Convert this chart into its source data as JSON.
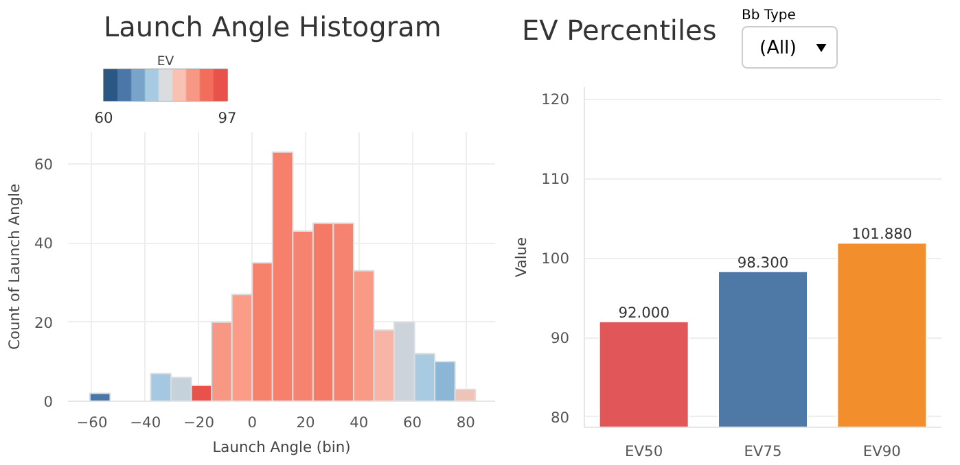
{
  "chart_data": [
    {
      "type": "histogram",
      "title": "Launch Angle Histogram",
      "xlabel": "Launch Angle (bin)",
      "ylabel": "Count of Launch Angle",
      "clabel": "EV",
      "clim": [
        60,
        97
      ],
      "cticks": [
        60,
        97
      ],
      "bins": [
        -60.8,
        -53.2,
        -45.6,
        -38.0,
        -30.4,
        -22.8,
        -15.2,
        -7.6,
        0,
        7.6,
        15.2,
        22.8,
        30.4,
        38.0,
        45.6,
        53.2,
        60.8,
        68.4,
        76.0,
        83.6
      ],
      "values": [
        2,
        0,
        0,
        7,
        6,
        4,
        20,
        27,
        35,
        63,
        43,
        45,
        45,
        33,
        18,
        20,
        12,
        10,
        3
      ],
      "colors": [
        "#4a76a8",
        "#cdd3da",
        "#cdd3da",
        "#a4c8e1",
        "#c5d1db",
        "#e8524a",
        "#f79784",
        "#fa9c87",
        "#f6826c",
        "#f6806c",
        "#f6836f",
        "#f47a66",
        "#f6836f",
        "#f89a85",
        "#f6b5a7",
        "#cdd3da",
        "#a9cbe2",
        "#8bb6d6",
        "#efc4b8"
      ],
      "xlim": [
        -69,
        91
      ],
      "xticks": [
        -60,
        -40,
        -20,
        0,
        20,
        40,
        60,
        80
      ],
      "ylim": [
        0,
        68
      ],
      "yticks": [
        0,
        20,
        40,
        60
      ],
      "grid": true
    },
    {
      "type": "bar",
      "title": "EV Percentiles",
      "ylabel": "Value",
      "annotations": [
        "Bb Type",
        "(All)"
      ],
      "categories": [
        "EV50",
        "EV75",
        "EV90"
      ],
      "values": [
        92.0,
        98.3,
        101.88
      ],
      "colors": [
        "#e15759",
        "#4e79a7",
        "#f28e2b"
      ],
      "value_labels": [
        "92.000",
        "98.300",
        "101.880"
      ],
      "ylim": [
        78.7,
        121.5
      ],
      "yticks": [
        80,
        90,
        100,
        110,
        120
      ],
      "grid": "y"
    }
  ]
}
